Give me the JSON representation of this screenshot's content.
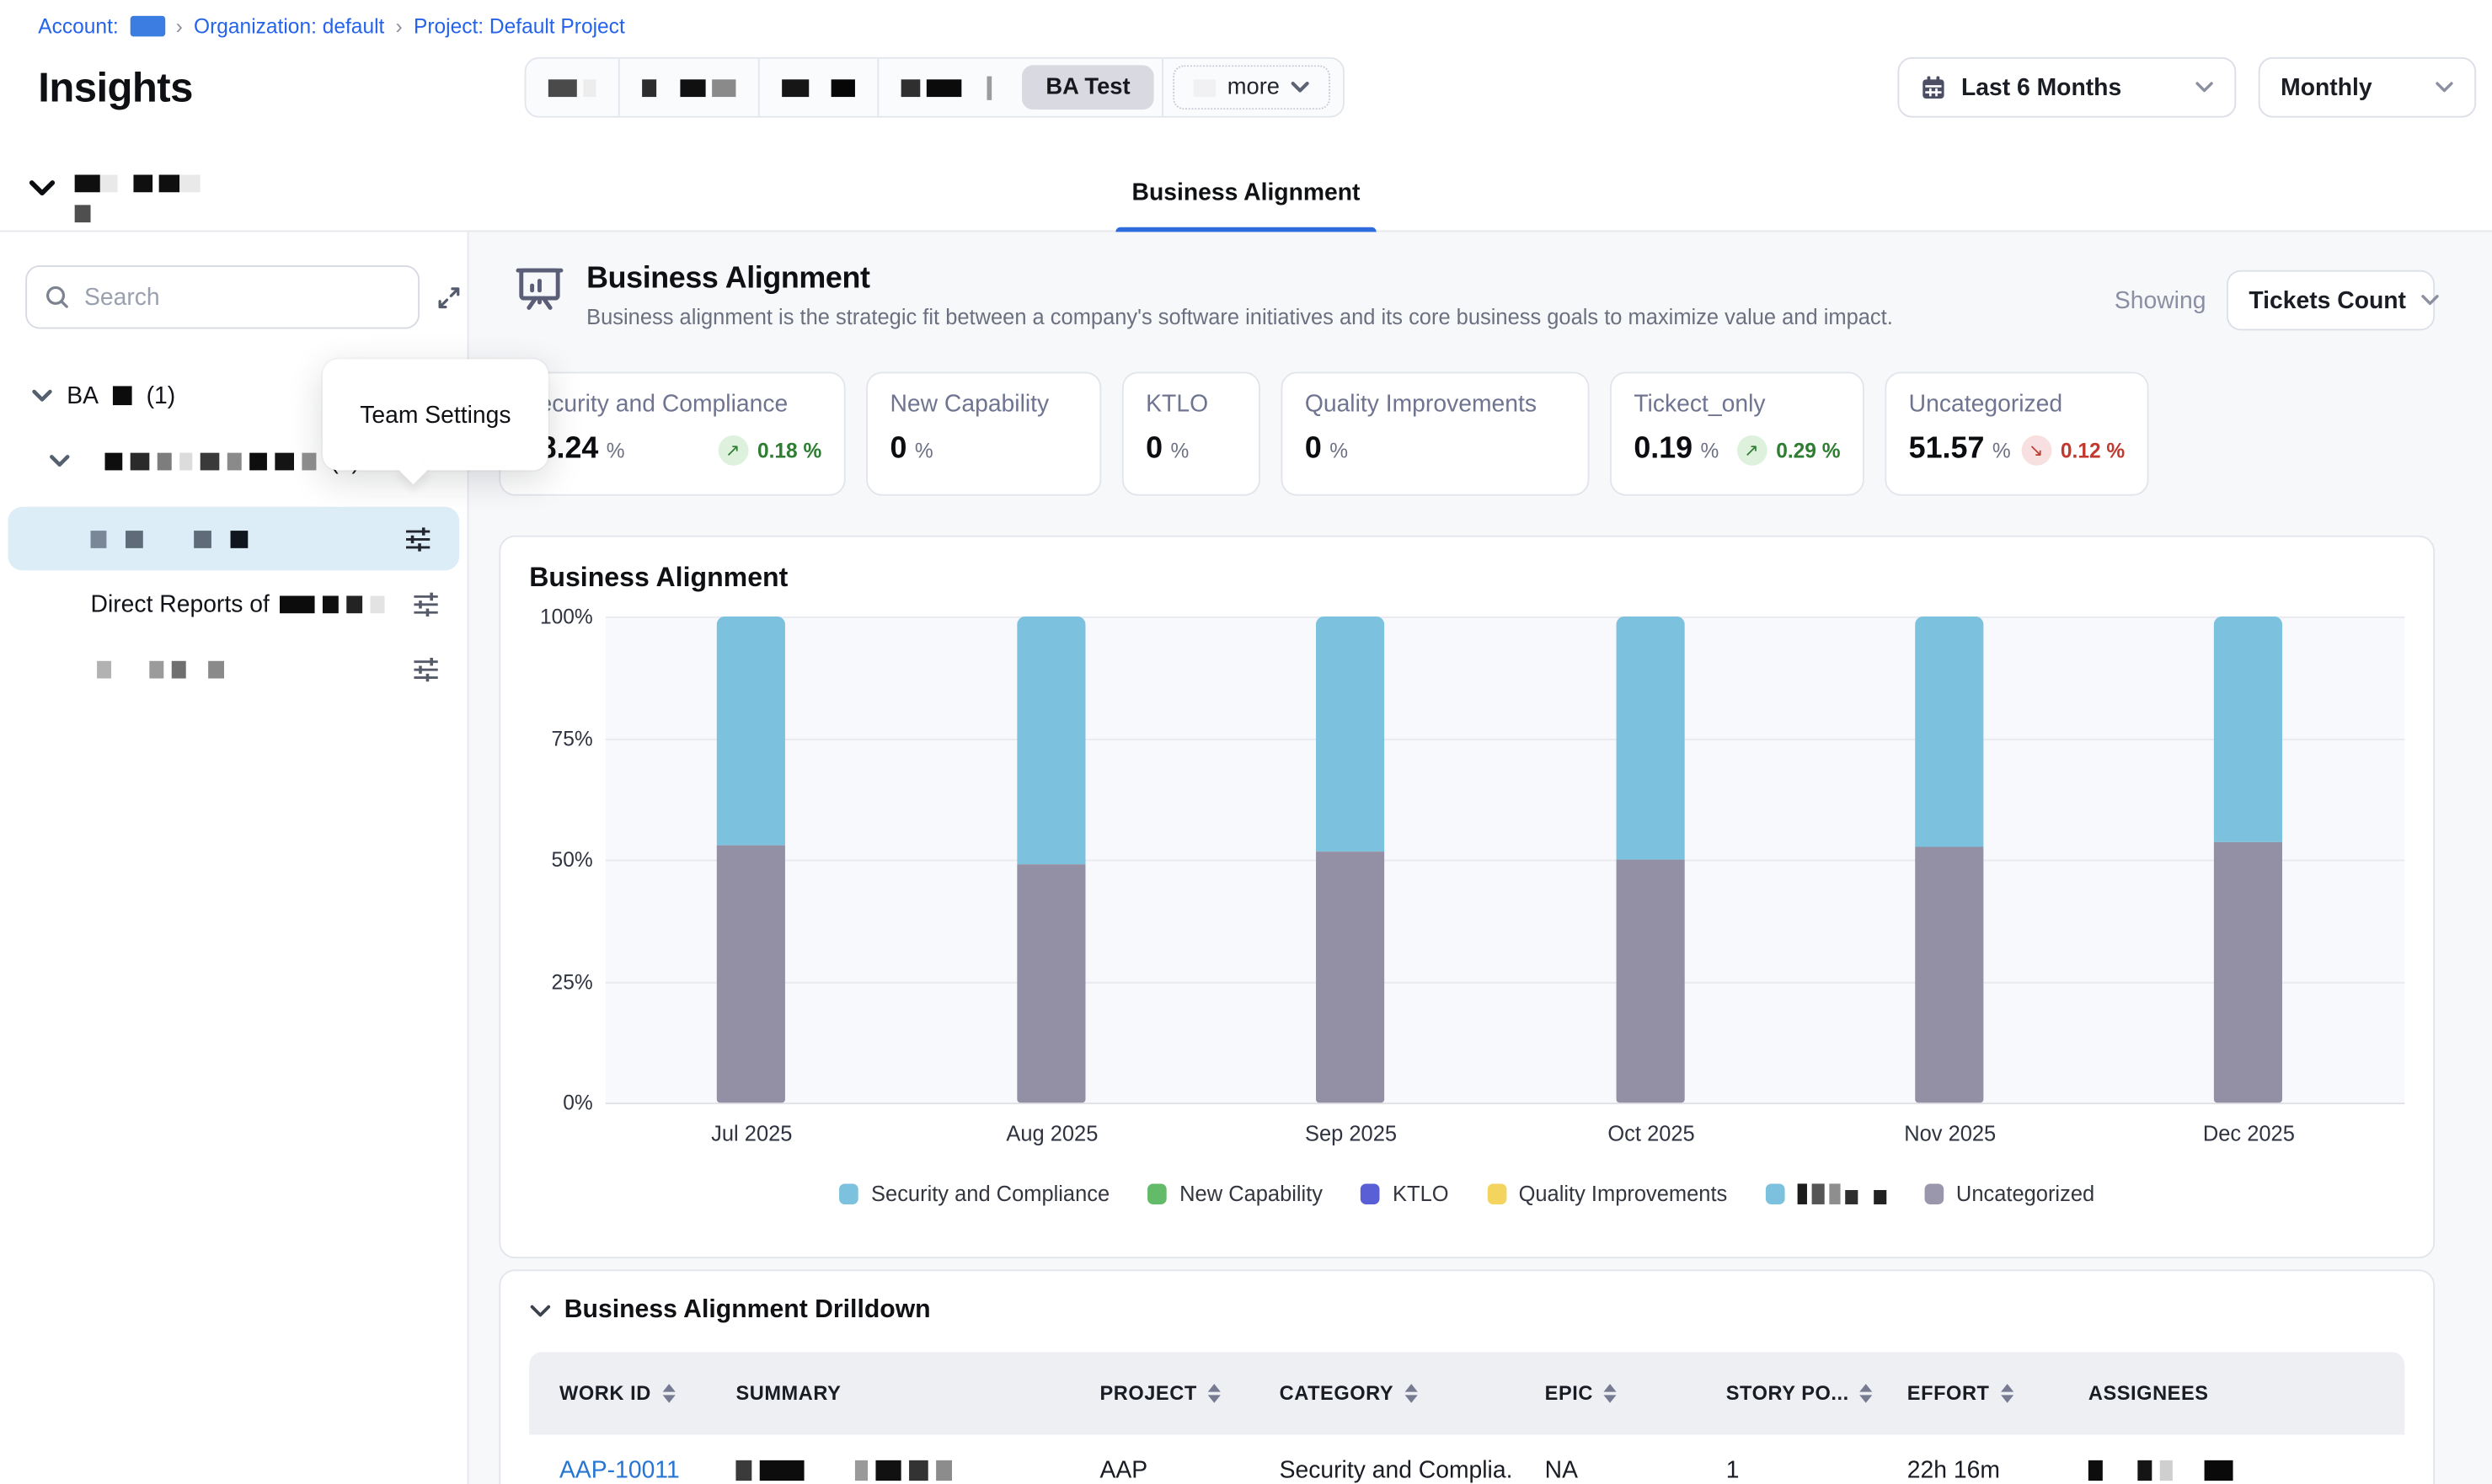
{
  "breadcrumb": {
    "account_label": "Account:",
    "separator": "›",
    "organization": "Organization: default",
    "project": "Project: Default Project"
  },
  "header": {
    "title": "Insights",
    "toolbar": {
      "active_tab": "BA Test",
      "more_label": "more"
    },
    "date_range": "Last 6 Months",
    "granularity": "Monthly"
  },
  "tabs": {
    "active": "Business Alignment"
  },
  "sidebar": {
    "search_placeholder": "Search",
    "tree": {
      "root_label": "BA",
      "root_count": "(1)",
      "group_count": "(3)",
      "direct_reports_label": "Direct Reports of"
    },
    "tooltip": "Team Settings"
  },
  "main": {
    "title": "Business Alignment",
    "description": "Business alignment is the strategic fit between a company's software initiatives and its core business goals to maximize value and impact.",
    "showing_label": "Showing",
    "showing_value": "Tickets Count",
    "cards": [
      {
        "label": "Security and Compliance",
        "value": "48.24",
        "unit": "%",
        "delta": "0.18 %",
        "trend": "up",
        "arrow": "↗"
      },
      {
        "label": "New Capability",
        "value": "0",
        "unit": "%"
      },
      {
        "label": "KTLO",
        "value": "0",
        "unit": "%"
      },
      {
        "label": "Quality Improvements",
        "value": "0",
        "unit": "%"
      },
      {
        "label": "Tickect_only",
        "value": "0.19",
        "unit": "%",
        "delta": "0.29 %",
        "trend": "up",
        "arrow": "↗"
      },
      {
        "label": "Uncategorized",
        "value": "51.57",
        "unit": "%",
        "delta": "0.12 %",
        "trend": "down",
        "arrow": "↘"
      }
    ]
  },
  "chart_data": {
    "type": "bar",
    "stacked": true,
    "title": "Business Alignment",
    "categories": [
      "Jul 2025",
      "Aug 2025",
      "Sep 2025",
      "Oct 2025",
      "Nov 2025",
      "Dec 2025"
    ],
    "series": [
      {
        "name": "Uncategorized",
        "color": "#938FA5",
        "values": [
          53,
          49,
          51.5,
          50,
          52.5,
          53.5
        ]
      },
      {
        "name": "Security and Compliance",
        "color": "#7CC2DE",
        "values": [
          47,
          51,
          48.5,
          50,
          47.5,
          46.5
        ]
      },
      {
        "name": "New Capability",
        "color": "#63BB6A",
        "values": [
          0,
          0,
          0,
          0,
          0,
          0
        ]
      },
      {
        "name": "KTLO",
        "color": "#5A5FD6",
        "values": [
          0,
          0,
          0,
          0,
          0,
          0
        ]
      },
      {
        "name": "Quality Improvements",
        "color": "#F2D45F",
        "values": [
          0,
          0,
          0,
          0,
          0,
          0
        ]
      },
      {
        "name": "Tickect_only",
        "color": "#7CC2DE",
        "values": [
          0,
          0,
          0,
          0,
          0,
          0
        ]
      }
    ],
    "stack_order": [
      "Uncategorized",
      "Security and Compliance"
    ],
    "ylim": [
      0,
      100
    ],
    "y_ticks": [
      "100%",
      "75%",
      "50%",
      "25%",
      "0%"
    ],
    "grid": true,
    "legend_position": "bottom",
    "legend": [
      {
        "label": "Security and Compliance",
        "color": "#7CC2DE"
      },
      {
        "label": "New Capability",
        "color": "#63BB6A"
      },
      {
        "label": "KTLO",
        "color": "#5A5FD6"
      },
      {
        "label": "Quality Improvements",
        "color": "#F2D45F"
      },
      {
        "label": "",
        "color": "#7CC2DE",
        "redacted": true
      },
      {
        "label": "Uncategorized",
        "color": "#9A97AD"
      }
    ]
  },
  "drilldown": {
    "title": "Business Alignment Drilldown",
    "columns": [
      {
        "label": "WORK ID",
        "sortable": true
      },
      {
        "label": "SUMMARY",
        "sortable": false
      },
      {
        "label": "PROJECT",
        "sortable": true
      },
      {
        "label": "CATEGORY",
        "sortable": true
      },
      {
        "label": "EPIC",
        "sortable": true
      },
      {
        "label": "STORY PO...",
        "sortable": true
      },
      {
        "label": "EFFORT",
        "sortable": true
      },
      {
        "label": "ASSIGNEES",
        "sortable": false
      }
    ],
    "rows": [
      {
        "work_id": "AAP-10011",
        "project": "AAP",
        "category": "Security and Complia...",
        "epic": "NA",
        "story_points": "1",
        "effort": "22h 16m"
      }
    ]
  }
}
